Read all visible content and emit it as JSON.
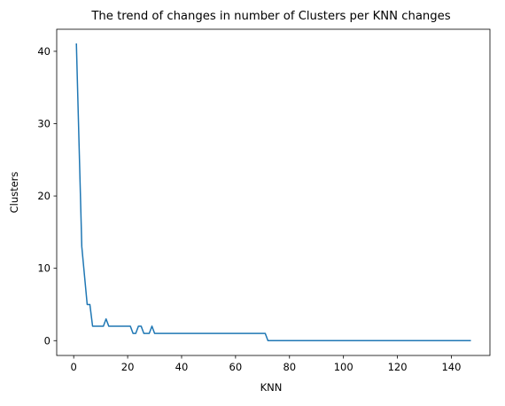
{
  "chart_data": {
    "type": "line",
    "title": "The trend of changes in number of Clusters per KNN changes",
    "xlabel": "KNN",
    "ylabel": "Clusters",
    "xlim": [
      -6.3,
      154.3
    ],
    "ylim": [
      -2.05,
      43.05
    ],
    "xticks": [
      0,
      20,
      40,
      60,
      80,
      100,
      120,
      140
    ],
    "yticks": [
      0,
      10,
      20,
      30,
      40
    ],
    "grid": false,
    "series": [
      {
        "color": "#1f77b4",
        "x": [
          1,
          2,
          3,
          4,
          5,
          6,
          7,
          8,
          9,
          10,
          11,
          12,
          13,
          14,
          15,
          16,
          17,
          18,
          19,
          20,
          21,
          22,
          23,
          24,
          25,
          26,
          27,
          28,
          29,
          30,
          31,
          32,
          33,
          34,
          35,
          36,
          37,
          38,
          39,
          40,
          41,
          42,
          43,
          44,
          45,
          46,
          47,
          48,
          49,
          50,
          51,
          52,
          53,
          54,
          55,
          56,
          57,
          58,
          59,
          60,
          61,
          62,
          63,
          64,
          65,
          66,
          67,
          68,
          69,
          70,
          71,
          72,
          73,
          74,
          75,
          76,
          77,
          78,
          79,
          80,
          81,
          82,
          83,
          84,
          85,
          86,
          87,
          88,
          89,
          90,
          91,
          92,
          93,
          94,
          95,
          96,
          97,
          98,
          99,
          100,
          101,
          102,
          103,
          104,
          105,
          106,
          107,
          108,
          109,
          110,
          111,
          112,
          113,
          114,
          115,
          116,
          117,
          118,
          119,
          120,
          121,
          122,
          123,
          124,
          125,
          126,
          127,
          128,
          129,
          130,
          131,
          132,
          133,
          134,
          135,
          136,
          137,
          138,
          139,
          140,
          141,
          142,
          143,
          144,
          145,
          146,
          147
        ],
        "y": [
          41,
          27,
          13,
          9,
          5,
          5,
          2,
          2,
          2,
          2,
          2,
          3,
          2,
          2,
          2,
          2,
          2,
          2,
          2,
          2,
          2,
          1,
          1,
          2,
          2,
          1,
          1,
          1,
          2,
          1,
          1,
          1,
          1,
          1,
          1,
          1,
          1,
          1,
          1,
          1,
          1,
          1,
          1,
          1,
          1,
          1,
          1,
          1,
          1,
          1,
          1,
          1,
          1,
          1,
          1,
          1,
          1,
          1,
          1,
          1,
          1,
          1,
          1,
          1,
          1,
          1,
          1,
          1,
          1,
          1,
          1,
          0,
          0,
          0,
          0,
          0,
          0,
          0,
          0,
          0,
          0,
          0,
          0,
          0,
          0,
          0,
          0,
          0,
          0,
          0,
          0,
          0,
          0,
          0,
          0,
          0,
          0,
          0,
          0,
          0,
          0,
          0,
          0,
          0,
          0,
          0,
          0,
          0,
          0,
          0,
          0,
          0,
          0,
          0,
          0,
          0,
          0,
          0,
          0,
          0,
          0,
          0,
          0,
          0,
          0,
          0,
          0,
          0,
          0,
          0,
          0,
          0,
          0,
          0,
          0,
          0,
          0,
          0,
          0,
          0,
          0,
          0,
          0,
          0,
          0,
          0,
          0
        ]
      }
    ]
  }
}
